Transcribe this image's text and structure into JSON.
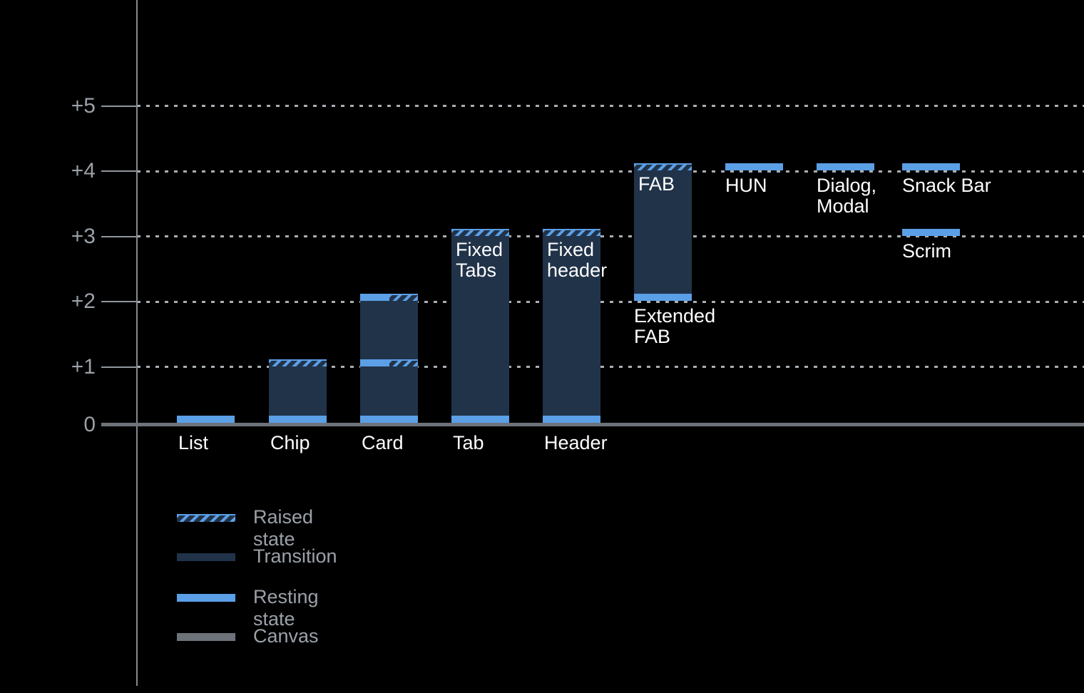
{
  "page": {
    "background": "#000000"
  },
  "colors": {
    "resting": "#5b9fe6",
    "transition": "#213349",
    "canvas": "#6e737a",
    "axis_line": "#858b92",
    "gridline": "#a9aeb3",
    "tick_label": "#9ba1a8",
    "bar_label": "#ffffff",
    "legend_text": "#9ba1a8"
  },
  "chart_data": {
    "type": "bar",
    "subtype": "material-elevation-range-chart",
    "title": "",
    "xlabel": "",
    "ylabel": "",
    "ylim": [
      0,
      5.6
    ],
    "grid": "horizontal dotted lines at +1..+5",
    "y_axis": {
      "tick_labels": [
        "+5",
        "+4",
        "+3",
        "+2",
        "+1",
        "0"
      ],
      "tick_values": [
        5,
        4,
        3,
        2,
        1,
        0
      ]
    },
    "categories": [
      "List",
      "Chip",
      "Card",
      "Tab",
      "Header",
      "FAB",
      "HUN",
      "Dialog, Modal",
      "Snack Bar",
      "Scrim"
    ],
    "bars": [
      {
        "id": "list",
        "column": 0,
        "axis_label": "List",
        "segments": [
          {
            "kind": "resting",
            "at": 0
          }
        ]
      },
      {
        "id": "chip",
        "column": 1,
        "axis_label": "Chip",
        "segments": [
          {
            "kind": "resting",
            "at": 0
          },
          {
            "kind": "transition",
            "from": 0,
            "to": 1
          },
          {
            "kind": "raised",
            "at": 1
          }
        ]
      },
      {
        "id": "card",
        "column": 2,
        "axis_label": "Card",
        "segments": [
          {
            "kind": "resting",
            "at": 0
          },
          {
            "kind": "transition",
            "from": 0,
            "to": 1
          },
          {
            "kind": "resting_raised",
            "at": 1
          },
          {
            "kind": "transition",
            "from": 1,
            "to": 2
          },
          {
            "kind": "resting_raised",
            "at": 2
          }
        ]
      },
      {
        "id": "tab",
        "column": 3,
        "axis_label": "Tab",
        "inner_label": [
          "Fixed",
          "Tabs"
        ],
        "segments": [
          {
            "kind": "resting",
            "at": 0
          },
          {
            "kind": "transition",
            "from": 0,
            "to": 3
          },
          {
            "kind": "raised",
            "at": 3
          }
        ]
      },
      {
        "id": "header",
        "column": 4,
        "axis_label": "Header",
        "inner_label": [
          "Fixed",
          "header"
        ],
        "segments": [
          {
            "kind": "resting",
            "at": 0
          },
          {
            "kind": "transition",
            "from": 0,
            "to": 3
          },
          {
            "kind": "raised",
            "at": 3
          }
        ]
      },
      {
        "id": "fab",
        "column": 5,
        "inner_label": [
          "FAB"
        ],
        "below_label": [
          "Extended",
          "FAB"
        ],
        "segments": [
          {
            "kind": "resting",
            "at": 2
          },
          {
            "kind": "transition",
            "from": 2,
            "to": 4
          },
          {
            "kind": "raised",
            "at": 4
          }
        ]
      },
      {
        "id": "hun",
        "column": 6,
        "below_label": [
          "HUN"
        ],
        "segments": [
          {
            "kind": "resting",
            "at": 4
          }
        ]
      },
      {
        "id": "dialog-modal",
        "column": 7,
        "below_label": [
          "Dialog,",
          "Modal"
        ],
        "segments": [
          {
            "kind": "resting",
            "at": 4
          }
        ]
      },
      {
        "id": "snack-bar",
        "column": 8,
        "below_label": [
          "Snack Bar"
        ],
        "segments": [
          {
            "kind": "resting",
            "at": 4
          }
        ]
      },
      {
        "id": "scrim",
        "column": 8,
        "below_label": [
          "Scrim"
        ],
        "segments": [
          {
            "kind": "resting",
            "at": 3
          }
        ]
      }
    ],
    "legend": {
      "position": "bottom-left",
      "items": [
        {
          "style": "raised",
          "label": "Raised state"
        },
        {
          "style": "transition",
          "label": "Transition"
        },
        {
          "style": "resting",
          "label": "Resting state"
        },
        {
          "style": "canvas",
          "label": "Canvas"
        }
      ]
    }
  }
}
